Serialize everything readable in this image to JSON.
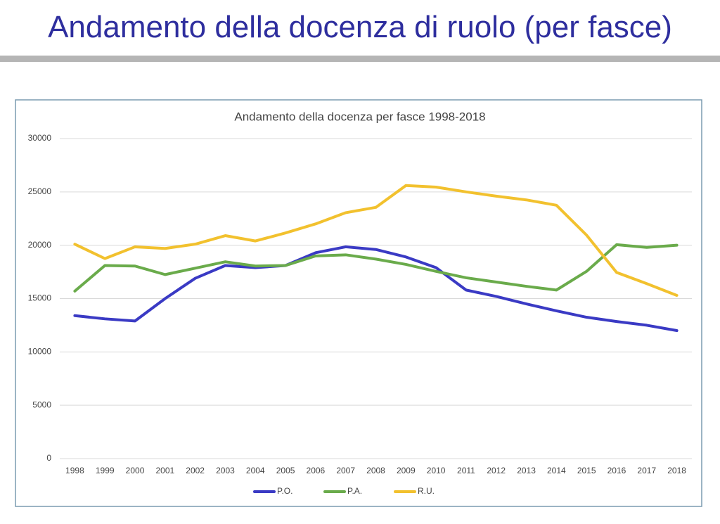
{
  "slide": {
    "title": "Andamento della docenza di ruolo (per fasce)"
  },
  "chart_data": {
    "type": "line",
    "title": "Andamento della docenza per fasce 1998-2018",
    "categories": [
      "1998",
      "1999",
      "2000",
      "2001",
      "2002",
      "2003",
      "2004",
      "2005",
      "2006",
      "2007",
      "2008",
      "2009",
      "2010",
      "2011",
      "2012",
      "2013",
      "2014",
      "2015",
      "2016",
      "2017",
      "2018"
    ],
    "series": [
      {
        "name": "P.O.",
        "color": "#3a3ac4",
        "values": [
          13400,
          13100,
          12900,
          15000,
          16900,
          18100,
          17900,
          18100,
          19300,
          19850,
          19600,
          18900,
          17900,
          15800,
          15200,
          14500,
          13850,
          13250,
          12850,
          12500,
          12000
        ]
      },
      {
        "name": "P.A.",
        "color": "#6aab4b",
        "values": [
          15700,
          18100,
          18050,
          17250,
          17850,
          18450,
          18050,
          18100,
          19000,
          19100,
          18700,
          18200,
          17550,
          16950,
          16550,
          16150,
          15800,
          17550,
          20050,
          19800,
          20000
        ]
      },
      {
        "name": "R.U.",
        "color": "#f2c12e",
        "values": [
          20100,
          18750,
          19850,
          19700,
          20100,
          20900,
          20400,
          21150,
          22000,
          23050,
          23550,
          25600,
          25450,
          25000,
          24600,
          24250,
          23750,
          20950,
          17450,
          16400,
          15300
        ]
      }
    ],
    "ylim": [
      0,
      30000
    ],
    "yticks": [
      0,
      5000,
      10000,
      15000,
      20000,
      25000,
      30000
    ],
    "grid": true,
    "legend": "bottom"
  }
}
